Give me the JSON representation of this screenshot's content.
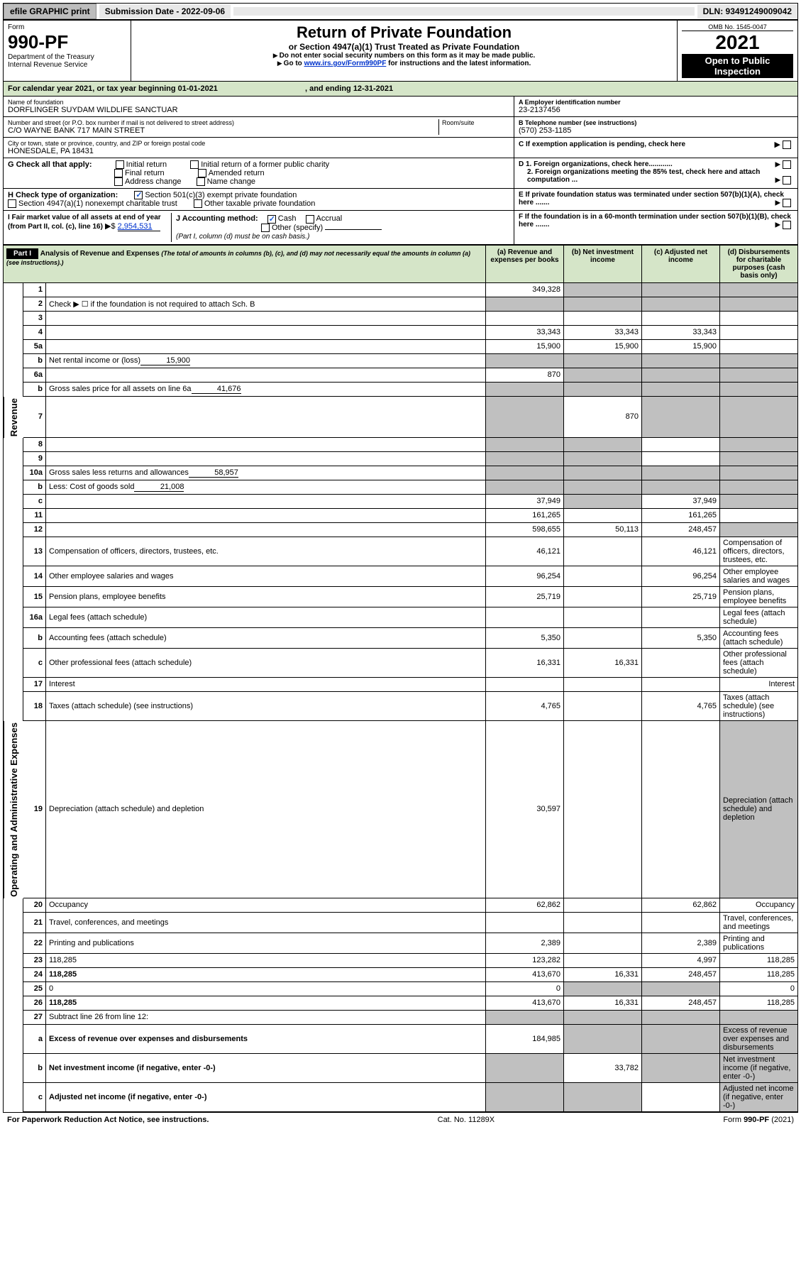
{
  "colors": {
    "header_bg": "#d5e5c8",
    "shade": "#c0c0c0",
    "link": "#0033cc",
    "check": "#1a5cd6",
    "text": "#000000",
    "bg": "#ffffff",
    "topbar_btn": "#bdbdbd",
    "topbar_cell": "#e8e8e8"
  },
  "topbar": {
    "efile": "efile GRAPHIC print",
    "subdate_label": "Submission Date - 2022-09-06",
    "dln": "DLN: 93491249009042"
  },
  "omb": "OMB No. 1545-0047",
  "form_label": "Form",
  "form_no": "990-PF",
  "dept": "Department of the Treasury",
  "irs": "Internal Revenue Service",
  "title": "Return of Private Foundation",
  "subtitle": "or Section 4947(a)(1) Trust Treated as Private Foundation",
  "warn1": "Do not enter social security numbers on this form as it may be made public.",
  "warn2_pre": "Go to ",
  "warn2_link": "www.irs.gov/Form990PF",
  "warn2_post": " for instructions and the latest information.",
  "year": "2021",
  "open_pub": "Open to Public Inspection",
  "calendar": "For calendar year 2021, or tax year beginning 01-01-2021",
  "calendar_end": ", and ending 12-31-2021",
  "name_label": "Name of foundation",
  "name": "DORFLINGER SUYDAM WILDLIFE SANCTUAR",
  "ein_label": "A Employer identification number",
  "ein": "23-2137456",
  "addr_label": "Number and street (or P.O. box number if mail is not delivered to street address)",
  "room_label": "Room/suite",
  "addr": "C/O WAYNE BANK 717 MAIN STREET",
  "tel_label": "B Telephone number (see instructions)",
  "tel": "(570) 253-1185",
  "city_label": "City or town, state or province, country, and ZIP or foreign postal code",
  "city": "HONESDALE, PA  18431",
  "c_label": "C If exemption application is pending, check here",
  "g_label": "G Check all that apply:",
  "g_opts": [
    "Initial return",
    "Final return",
    "Address change",
    "Initial return of a former public charity",
    "Amended return",
    "Name change"
  ],
  "d1": "D 1. Foreign organizations, check here............",
  "d2": "2. Foreign organizations meeting the 85% test, check here and attach computation ...",
  "e_label": "E  If private foundation status was terminated under section 507(b)(1)(A), check here .......",
  "h_label": "H Check type of organization:",
  "h_opt1": "Section 501(c)(3) exempt private foundation",
  "h_opt2": "Section 4947(a)(1) nonexempt charitable trust",
  "h_opt3": "Other taxable private foundation",
  "f_label": "F  If the foundation is in a 60-month termination under section 507(b)(1)(B), check here .......",
  "i_label": "I Fair market value of all assets at end of year (from Part II, col. (c), line 16)",
  "i_val": "2,954,531",
  "j_label": "J Accounting method:",
  "j_cash": "Cash",
  "j_accrual": "Accrual",
  "j_other": "Other (specify)",
  "j_note": "(Part I, column (d) must be on cash basis.)",
  "part1_label": "Part I",
  "part1_title": "Analysis of Revenue and Expenses",
  "part1_note": "(The total of amounts in columns (b), (c), and (d) may not necessarily equal the amounts in column (a) (see instructions).)",
  "cols": {
    "a": "(a) Revenue and expenses per books",
    "b": "(b) Net investment income",
    "c": "(c) Adjusted net income",
    "d": "(d) Disbursements for charitable purposes (cash basis only)"
  },
  "side_rev": "Revenue",
  "side_exp": "Operating and Administrative Expenses",
  "lines": [
    {
      "n": "1",
      "d": "",
      "a": "349,328",
      "b": "",
      "c": "",
      "grey_bcd": true
    },
    {
      "n": "2",
      "d": "Check ▶ ☐ if the foundation is not required to attach Sch. B",
      "nocells": true
    },
    {
      "n": "3",
      "d": "",
      "a": "",
      "b": "",
      "c": ""
    },
    {
      "n": "4",
      "d": "",
      "a": "33,343",
      "b": "33,343",
      "c": "33,343"
    },
    {
      "n": "5a",
      "d": "",
      "a": "15,900",
      "b": "15,900",
      "c": "15,900"
    },
    {
      "n": "b",
      "d": "Net rental income or (loss)",
      "inline": "15,900",
      "grey_all": true
    },
    {
      "n": "6a",
      "d": "",
      "a": "870",
      "b": "",
      "c": "",
      "grey_bcd": true
    },
    {
      "n": "b",
      "d": "Gross sales price for all assets on line 6a",
      "inline": "41,676",
      "grey_all": true
    },
    {
      "n": "7",
      "d": "",
      "a": "",
      "b": "870",
      "c": "",
      "grey_a": true,
      "grey_cd": true
    },
    {
      "n": "8",
      "d": "",
      "a": "",
      "b": "",
      "c": "",
      "grey_ab": true,
      "grey_d": true
    },
    {
      "n": "9",
      "d": "",
      "a": "",
      "b": "",
      "c": "",
      "grey_ab": true,
      "grey_d": true
    },
    {
      "n": "10a",
      "d": "Gross sales less returns and allowances",
      "inline": "58,957",
      "grey_all": true
    },
    {
      "n": "b",
      "d": "Less: Cost of goods sold",
      "inline": "21,008",
      "grey_all": true
    },
    {
      "n": "c",
      "d": "",
      "a": "37,949",
      "b": "",
      "c": "37,949",
      "grey_b": true,
      "grey_d": true
    },
    {
      "n": "11",
      "d": "",
      "a": "161,265",
      "b": "",
      "c": "161,265"
    },
    {
      "n": "12",
      "d": "",
      "a": "598,655",
      "b": "50,113",
      "c": "248,457",
      "bold": true,
      "grey_d": true
    }
  ],
  "exp_lines": [
    {
      "n": "13",
      "d": "Compensation of officers, directors, trustees, etc.",
      "a": "46,121",
      "c": "46,121"
    },
    {
      "n": "14",
      "d": "Other employee salaries and wages",
      "a": "96,254",
      "c": "96,254"
    },
    {
      "n": "15",
      "d": "Pension plans, employee benefits",
      "a": "25,719",
      "c": "25,719"
    },
    {
      "n": "16a",
      "d": "Legal fees (attach schedule)",
      "a": "",
      "c": ""
    },
    {
      "n": "b",
      "d": "Accounting fees (attach schedule)",
      "a": "5,350",
      "c": "5,350"
    },
    {
      "n": "c",
      "d": "Other professional fees (attach schedule)",
      "a": "16,331",
      "b": "16,331"
    },
    {
      "n": "17",
      "d": "Interest",
      "a": ""
    },
    {
      "n": "18",
      "d": "Taxes (attach schedule) (see instructions)",
      "a": "4,765",
      "c": "4,765"
    },
    {
      "n": "19",
      "d": "Depreciation (attach schedule) and depletion",
      "a": "30,597",
      "grey_d": true
    },
    {
      "n": "20",
      "d": "Occupancy",
      "a": "62,862",
      "c": "62,862"
    },
    {
      "n": "21",
      "d": "Travel, conferences, and meetings",
      "a": ""
    },
    {
      "n": "22",
      "d": "Printing and publications",
      "a": "2,389",
      "c": "2,389"
    },
    {
      "n": "23",
      "d": "118,285",
      "a": "123,282",
      "c": "4,997"
    },
    {
      "n": "24",
      "d": "118,285",
      "a": "413,670",
      "b": "16,331",
      "c": "248,457",
      "bold": true
    },
    {
      "n": "25",
      "d": "0",
      "a": "0",
      "grey_bc": true
    },
    {
      "n": "26",
      "d": "118,285",
      "a": "413,670",
      "b": "16,331",
      "c": "248,457",
      "bold": true
    }
  ],
  "tail_lines": [
    {
      "n": "27",
      "d": "Subtract line 26 from line 12:",
      "grey_all": true
    },
    {
      "n": "a",
      "d": "Excess of revenue over expenses and disbursements",
      "a": "184,985",
      "bold": true,
      "grey_bcd": true
    },
    {
      "n": "b",
      "d": "Net investment income (if negative, enter -0-)",
      "b": "33,782",
      "bold": true,
      "grey_a": true,
      "grey_cd": true
    },
    {
      "n": "c",
      "d": "Adjusted net income (if negative, enter -0-)",
      "bold": true,
      "grey_ab": true,
      "grey_d": true
    }
  ],
  "footer": {
    "left": "For Paperwork Reduction Act Notice, see instructions.",
    "mid": "Cat. No. 11289X",
    "right": "Form 990-PF (2021)"
  }
}
